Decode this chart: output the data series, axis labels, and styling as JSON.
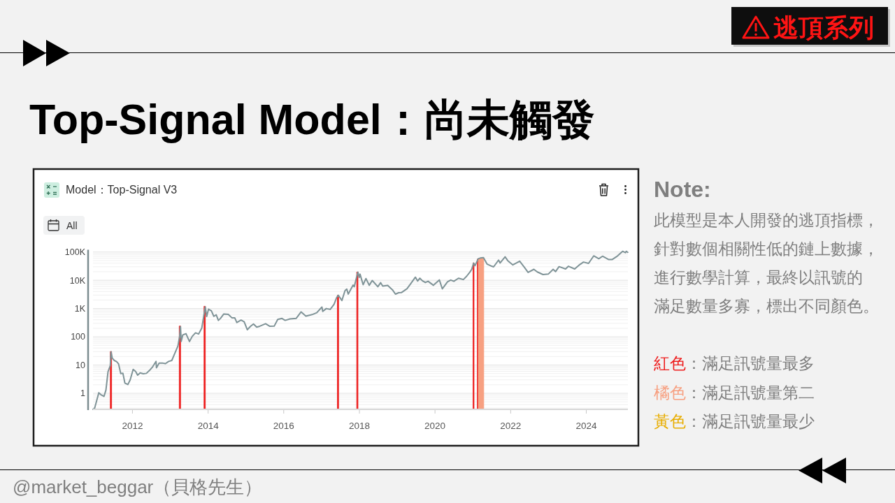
{
  "chart_data": {
    "type": "line",
    "title": "Top-Signal Model：尚未觸發",
    "subtitle": "Model：Top-Signal V3",
    "annotations": [
      "逃頂系列",
      "All",
      "Note:",
      "此模型是本人開發的逃頂指標，",
      "針對數個相關性低的鏈上數據，",
      "進行數學計算，最終以訊號的",
      "滿足數量多寡，標出不同顏色。",
      "：滿足訊號量最多",
      "：滿足訊號量第二",
      "：滿足訊號量最少",
      "@market_beggar（貝格先生）"
    ],
    "xlim": [
      "2010-12-16",
      "2025-02-06"
    ],
    "xticks": [
      "2012",
      "2014",
      "2016",
      "2018",
      "2020",
      "2022",
      "2024"
    ],
    "ylim": [
      0.27,
      120000
    ],
    "yticks": [
      {
        "value": 0.3,
        "label": null
      },
      {
        "value": 0.4,
        "label": null
      },
      {
        "value": 0.5,
        "label": null
      },
      {
        "value": 0.6,
        "label": null
      },
      {
        "value": 0.7,
        "label": null
      },
      {
        "value": 0.8,
        "label": null
      },
      {
        "value": 0.9,
        "label": null
      },
      1,
      {
        "value": 2,
        "label": null
      },
      {
        "value": 3,
        "label": null
      },
      {
        "value": 4,
        "label": null
      },
      {
        "value": 5,
        "label": null
      },
      {
        "value": 6,
        "label": null
      },
      {
        "value": 7,
        "label": null
      },
      {
        "value": 8,
        "label": null
      },
      {
        "value": 9,
        "label": null
      },
      10,
      {
        "value": 20,
        "label": null
      },
      {
        "value": 30,
        "label": null
      },
      {
        "value": 40,
        "label": null
      },
      {
        "value": 50,
        "label": null
      },
      {
        "value": 60,
        "label": null
      },
      {
        "value": 70,
        "label": null
      },
      {
        "value": 80,
        "label": null
      },
      {
        "value": 90,
        "label": null
      },
      100,
      {
        "value": 200,
        "label": null
      },
      {
        "value": 300,
        "label": null
      },
      {
        "value": 400,
        "label": null
      },
      {
        "value": 500,
        "label": null
      },
      {
        "value": 600,
        "label": null
      },
      {
        "value": 700,
        "label": null
      },
      {
        "value": 800,
        "label": null
      },
      {
        "value": 900,
        "label": null
      },
      {
        "value": 1000,
        "label": "1K"
      },
      {
        "value": 2000,
        "label": null
      },
      {
        "value": 3000,
        "label": null
      },
      {
        "value": 4000,
        "label": null
      },
      {
        "value": 5000,
        "label": null
      },
      {
        "value": 6000,
        "label": null
      },
      {
        "value": 7000,
        "label": null
      },
      {
        "value": 8000,
        "label": null
      },
      {
        "value": 9000,
        "label": null
      },
      {
        "value": 10000,
        "label": "10K"
      },
      {
        "value": 20000,
        "label": null
      },
      {
        "value": 30000,
        "label": null
      },
      {
        "value": 40000,
        "label": null
      },
      {
        "value": 50000,
        "label": null
      },
      {
        "value": 60000,
        "label": null
      },
      {
        "value": 70000,
        "label": null
      },
      {
        "value": 80000,
        "label": null
      },
      {
        "value": 90000,
        "label": null
      },
      {
        "value": 100000,
        "label": "100K"
      }
    ],
    "log": true,
    "grid": "y",
    "legend": "right",
    "series": [
      {
        "color": "#7f9397",
        "x": [
          "2010-12-16",
          "2011-01-01",
          "2011-02-10",
          "2011-03-01",
          "2011-04-01",
          "2011-04-20",
          "2011-05-10",
          "2011-06-01",
          "2011-06-08",
          "2011-06-20",
          "2011-07-10",
          "2011-08-01",
          "2011-08-20",
          "2011-09-10",
          "2011-10-01",
          "2011-10-20",
          "2011-11-18",
          "2011-12-10",
          "2012-01-08",
          "2012-02-01",
          "2012-02-20",
          "2012-03-15",
          "2012-04-15",
          "2012-05-15",
          "2012-06-15",
          "2012-07-15",
          "2012-08-16",
          "2012-08-20",
          "2012-09-15",
          "2012-10-15",
          "2012-11-15",
          "2012-12-15",
          "2013-01-15",
          "2013-02-15",
          "2013-03-15",
          "2013-04-01",
          "2013-04-09",
          "2013-04-16",
          "2013-05-01",
          "2013-06-01",
          "2013-07-05",
          "2013-08-01",
          "2013-09-01",
          "2013-10-01",
          "2013-11-01",
          "2013-11-18",
          "2013-12-04",
          "2013-12-18",
          "2014-01-05",
          "2014-02-01",
          "2014-02-25",
          "2014-03-20",
          "2014-04-10",
          "2014-05-01",
          "2014-06-01",
          "2014-07-15",
          "2014-08-18",
          "2014-09-15",
          "2014-10-05",
          "2014-11-15",
          "2014-12-15",
          "2015-01-14",
          "2015-02-15",
          "2015-03-15",
          "2015-04-15",
          "2015-05-15",
          "2015-07-10",
          "2015-08-20",
          "2015-10-01",
          "2015-11-04",
          "2015-12-15",
          "2016-01-15",
          "2016-03-01",
          "2016-05-01",
          "2016-06-17",
          "2016-08-02",
          "2016-10-01",
          "2016-11-15",
          "2017-01-04",
          "2017-01-12",
          "2017-02-15",
          "2017-03-25",
          "2017-05-01",
          "2017-05-25",
          "2017-06-11",
          "2017-07-16",
          "2017-08-15",
          "2017-09-01",
          "2017-09-15",
          "2017-11-01",
          "2017-11-12",
          "2017-12-17",
          "2017-12-30",
          "2018-01-07",
          "2018-02-06",
          "2018-03-05",
          "2018-04-06",
          "2018-05-05",
          "2018-06-28",
          "2018-07-25",
          "2018-08-14",
          "2018-10-01",
          "2018-11-20",
          "2018-12-15",
          "2019-01-15",
          "2019-02-10",
          "2019-04-05",
          "2019-05-15",
          "2019-06-26",
          "2019-07-17",
          "2019-08-08",
          "2019-09-01",
          "2019-09-30",
          "2019-10-26",
          "2019-12-17",
          "2020-02-12",
          "2020-03-12",
          "2020-05-01",
          "2020-06-01",
          "2020-07-01",
          "2020-08-15",
          "2020-10-01",
          "2020-11-01",
          "2020-12-01",
          "2020-12-20",
          "2021-01-08",
          "2021-01-22",
          "2021-02-21",
          "2021-03-13",
          "2021-04-13",
          "2021-05-19",
          "2021-06-22",
          "2021-07-20",
          "2021-09-06",
          "2021-09-21",
          "2021-11-08",
          "2021-12-04",
          "2022-01-22",
          "2022-03-29",
          "2022-05-12",
          "2022-06-18",
          "2022-08-13",
          "2022-09-15",
          "2022-11-09",
          "2022-12-30",
          "2023-02-15",
          "2023-03-10",
          "2023-04-13",
          "2023-06-15",
          "2023-07-13",
          "2023-09-11",
          "2023-10-24",
          "2023-12-05",
          "2024-01-23",
          "2024-03-13",
          "2024-05-01",
          "2024-06-06",
          "2024-08-05",
          "2024-09-06",
          "2024-10-29",
          "2024-12-17",
          "2025-01-13",
          "2025-01-21",
          "2025-02-05"
        ],
        "values": [
          0.27,
          0.3,
          1.05,
          0.9,
          0.78,
          1.3,
          5.8,
          9.6,
          29.6,
          17.5,
          14.5,
          13.2,
          11,
          5,
          5.1,
          2.3,
          2.05,
          3,
          7,
          5.9,
          4.4,
          5.3,
          4.9,
          5.1,
          6.5,
          8.8,
          13.5,
          8,
          11.8,
          11.8,
          11.2,
          13.4,
          14.5,
          27,
          47,
          104,
          230,
          68,
          116,
          129,
          68,
          104,
          138,
          125,
          205,
          500,
          1150,
          520,
          950,
          830,
          530,
          600,
          380,
          450,
          640,
          620,
          470,
          470,
          320,
          390,
          340,
          178,
          235,
          285,
          220,
          237,
          290,
          235,
          238,
          410,
          445,
          380,
          430,
          450,
          760,
          540,
          610,
          710,
          1130,
          790,
          1000,
          930,
          1400,
          2400,
          2960,
          1920,
          4300,
          4900,
          3250,
          6750,
          5900,
          19500,
          12500,
          16500,
          6950,
          11500,
          6630,
          9800,
          5900,
          8200,
          6200,
          6600,
          4400,
          3230,
          3630,
          3650,
          5000,
          7900,
          12900,
          9400,
          11800,
          9600,
          8300,
          9200,
          6640,
          10300,
          4970,
          8800,
          10200,
          9200,
          11800,
          10600,
          13800,
          19000,
          24000,
          40700,
          33000,
          57500,
          61200,
          63500,
          37000,
          32500,
          29800,
          51800,
          40700,
          67500,
          49200,
          35000,
          47400,
          29000,
          19000,
          24400,
          19700,
          15900,
          16500,
          24300,
          20200,
          30400,
          25100,
          31400,
          25100,
          34500,
          44000,
          39500,
          73000,
          57800,
          71000,
          54000,
          53900,
          72700,
          106000,
          94500,
          106000,
          97000
        ]
      },
      {
        "type": "area",
        "name": "紅色",
        "color": "#ee1b1b",
        "x": [
          "2011-06-01",
          "2011-06-14",
          "2011-06-20",
          "2013-03-28",
          "2013-04-10",
          "2013-04-20",
          "2013-11-22",
          "2013-12-05",
          "2013-12-15",
          "2017-06-02",
          "2017-06-14",
          "2017-06-20",
          "2017-12-06",
          "2017-12-18",
          "2017-12-25",
          "2021-01-02",
          "2021-01-12",
          "2021-01-20",
          "2021-02-12",
          "2021-02-21"
        ],
        "values": [
          30,
          30,
          null,
          240,
          240,
          null,
          1200,
          1200,
          null,
          2950,
          2950,
          null,
          19500,
          19500,
          null,
          41000,
          41000,
          null,
          56000,
          56000
        ]
      },
      {
        "type": "area",
        "name": "橘色",
        "color": "#f7a081",
        "x": [
          "2021-02-22",
          "2021-04-16"
        ],
        "values": [
          57000,
          64000
        ]
      },
      {
        "type": "area",
        "name": "黃色",
        "color": "#e8ad00"
      }
    ]
  }
}
